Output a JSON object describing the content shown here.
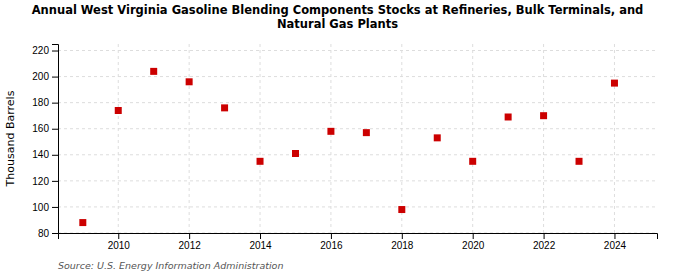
{
  "chart_data": {
    "type": "scatter",
    "title": "Annual West Virginia Gasoline Blending Components Stocks at Refineries, Bulk Terminals, and\nNatural Gas Plants",
    "ylabel": "Thousand Barrels",
    "source": "Source: U.S. Energy Information Administration",
    "x": [
      2009,
      2010,
      2011,
      2012,
      2013,
      2014,
      2015,
      2016,
      2017,
      2018,
      2019,
      2020,
      2021,
      2022,
      2023,
      2024
    ],
    "values": [
      88,
      174,
      204,
      196,
      176,
      135,
      141,
      158,
      157,
      98,
      153,
      135,
      169,
      170,
      135,
      195
    ],
    "color": "#cc0000",
    "marker": "square",
    "xlim": [
      2008.3,
      2025.2
    ],
    "xticks": [
      2010,
      2012,
      2014,
      2016,
      2018,
      2020,
      2022,
      2024
    ],
    "ylim": [
      80,
      225
    ],
    "yticks": [
      80,
      100,
      120,
      140,
      160,
      180,
      200,
      220
    ],
    "grid": true
  }
}
